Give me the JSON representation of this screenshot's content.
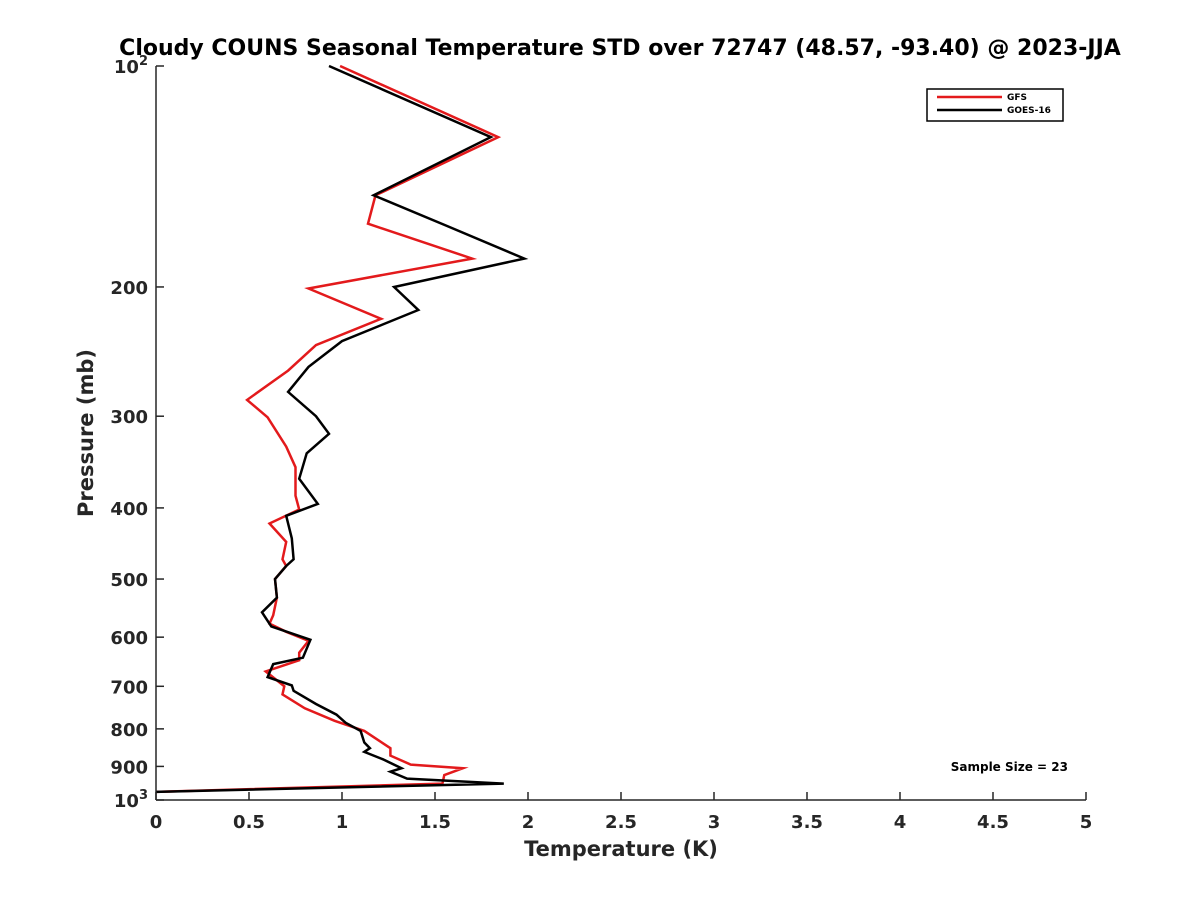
{
  "chart_data": {
    "type": "line",
    "title": "Cloudy COUNS Seasonal Temperature STD over 72747 (48.57, -93.40) @ 2023-JJA",
    "xlabel": "Temperature (K)",
    "ylabel": "Pressure (mb)",
    "xlim": [
      0,
      5
    ],
    "ylim": [
      100,
      1000
    ],
    "y_scale": "log",
    "y_reversed": true,
    "x_ticks": [
      0,
      0.5,
      1,
      1.5,
      2,
      2.5,
      3,
      3.5,
      4,
      4.5,
      5
    ],
    "x_tick_labels": [
      "0",
      "0.5",
      "1",
      "1.5",
      "2",
      "2.5",
      "3",
      "3.5",
      "4",
      "4.5",
      "5"
    ],
    "y_ticks": [
      {
        "value": 100,
        "base": "10",
        "exp": "2"
      },
      {
        "value": 200,
        "label": "200"
      },
      {
        "value": 300,
        "label": "300"
      },
      {
        "value": 400,
        "label": "400"
      },
      {
        "value": 500,
        "label": "500"
      },
      {
        "value": 600,
        "label": "600"
      },
      {
        "value": 700,
        "label": "700"
      },
      {
        "value": 800,
        "label": "800"
      },
      {
        "value": 900,
        "label": "900"
      },
      {
        "value": 1000,
        "base": "10",
        "exp": "3"
      }
    ],
    "legend_position": "top-right",
    "grid": false,
    "annotation": "Sample Size = 23",
    "series": [
      {
        "name": "GFS",
        "color": "#e31a1c",
        "points": [
          [
            0.99,
            100
          ],
          [
            1.84,
            125
          ],
          [
            1.18,
            150
          ],
          [
            1.14,
            164
          ],
          [
            1.7,
            183
          ],
          [
            0.82,
            201
          ],
          [
            1.21,
            221
          ],
          [
            0.86,
            240
          ],
          [
            0.71,
            260
          ],
          [
            0.49,
            285
          ],
          [
            0.6,
            301
          ],
          [
            0.7,
            330
          ],
          [
            0.75,
            352
          ],
          [
            0.75,
            385
          ],
          [
            0.77,
            402
          ],
          [
            0.61,
            420
          ],
          [
            0.7,
            445
          ],
          [
            0.68,
            470
          ],
          [
            0.7,
            480
          ],
          [
            0.64,
            500
          ],
          [
            0.65,
            530
          ],
          [
            0.63,
            560
          ],
          [
            0.61,
            575
          ],
          [
            0.7,
            590
          ],
          [
            0.82,
            607
          ],
          [
            0.77,
            630
          ],
          [
            0.77,
            645
          ],
          [
            0.59,
            668
          ],
          [
            0.69,
            700
          ],
          [
            0.68,
            718
          ],
          [
            0.8,
            750
          ],
          [
            0.96,
            780
          ],
          [
            1.12,
            805
          ],
          [
            1.26,
            850
          ],
          [
            1.26,
            870
          ],
          [
            1.37,
            895
          ],
          [
            1.65,
            905
          ],
          [
            1.55,
            925
          ],
          [
            1.54,
            950
          ],
          [
            0.0,
            975
          ]
        ]
      },
      {
        "name": "GOES-16",
        "color": "#000000",
        "points": [
          [
            0.93,
            100
          ],
          [
            1.8,
            125
          ],
          [
            1.17,
            150
          ],
          [
            1.56,
            165
          ],
          [
            1.98,
            183
          ],
          [
            1.28,
            200
          ],
          [
            1.41,
            215
          ],
          [
            1.0,
            237
          ],
          [
            0.82,
            257
          ],
          [
            0.71,
            278
          ],
          [
            0.86,
            300
          ],
          [
            0.93,
            317
          ],
          [
            0.81,
            337
          ],
          [
            0.77,
            365
          ],
          [
            0.87,
            395
          ],
          [
            0.7,
            410
          ],
          [
            0.73,
            440
          ],
          [
            0.74,
            470
          ],
          [
            0.7,
            480
          ],
          [
            0.64,
            500
          ],
          [
            0.65,
            530
          ],
          [
            0.57,
            555
          ],
          [
            0.62,
            580
          ],
          [
            0.83,
            605
          ],
          [
            0.79,
            640
          ],
          [
            0.63,
            653
          ],
          [
            0.6,
            680
          ],
          [
            0.73,
            698
          ],
          [
            0.74,
            710
          ],
          [
            0.86,
            740
          ],
          [
            0.97,
            765
          ],
          [
            1.02,
            785
          ],
          [
            1.1,
            805
          ],
          [
            1.12,
            835
          ],
          [
            1.15,
            850
          ],
          [
            1.12,
            860
          ],
          [
            1.22,
            880
          ],
          [
            1.32,
            905
          ],
          [
            1.26,
            915
          ],
          [
            1.35,
            935
          ],
          [
            1.87,
            950
          ],
          [
            0.0,
            975
          ]
        ]
      }
    ]
  }
}
